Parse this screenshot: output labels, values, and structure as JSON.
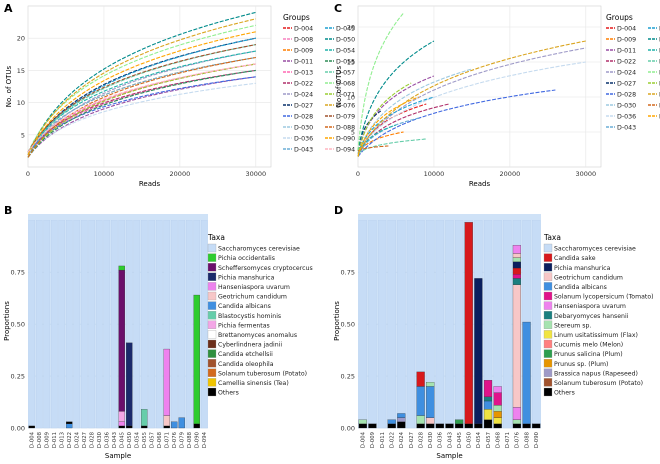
{
  "chart_data": [
    {
      "panel": "A",
      "type": "line",
      "title": "",
      "xlabel": "Reads",
      "ylabel": "No. of OTUs",
      "xlim": [
        0,
        32000
      ],
      "ylim": [
        0,
        25
      ],
      "xticks": [
        "0",
        "10000",
        "20000",
        "30000"
      ],
      "yticks": [
        "5",
        "10",
        "15",
        "20"
      ],
      "legend_title": "Groups",
      "legend": {
        "left": [
          "D-004",
          "D-008",
          "D-009",
          "D-011",
          "D-013",
          "D-022",
          "D-024",
          "D-027",
          "D-028",
          "D-030",
          "D-036",
          "D-043"
        ],
        "right": [
          "D-045",
          "D-050",
          "D-054",
          "D-055",
          "D-057",
          "D-068",
          "D-071",
          "D-076",
          "D-079",
          "D-088",
          "D-090",
          "D-094"
        ]
      },
      "series": [
        {
          "name": "D-004",
          "color": "#e41a1c",
          "x_max": 30000,
          "y_max": 16
        },
        {
          "name": "D-008",
          "color": "#f781bf",
          "x_max": 30000,
          "y_max": 15
        },
        {
          "name": "D-009",
          "color": "#ff7f00",
          "x_max": 30000,
          "y_max": 17
        },
        {
          "name": "D-011",
          "color": "#984ea3",
          "x_max": 30000,
          "y_max": 14
        },
        {
          "name": "D-013",
          "color": "#ff69b4",
          "x_max": 30000,
          "y_max": 16
        },
        {
          "name": "D-022",
          "color": "#b0306b",
          "x_max": 30000,
          "y_max": 15
        },
        {
          "name": "D-024",
          "color": "#9e9ac8",
          "x_max": 30000,
          "y_max": 18
        },
        {
          "name": "D-027",
          "color": "#08306b",
          "x_max": 30000,
          "y_max": 20
        },
        {
          "name": "D-028",
          "color": "#4169e1",
          "x_max": 30000,
          "y_max": 14
        },
        {
          "name": "D-030",
          "color": "#9ecae1",
          "x_max": 30000,
          "y_max": 15
        },
        {
          "name": "D-036",
          "color": "#c6dbef",
          "x_max": 30000,
          "y_max": 13
        },
        {
          "name": "D-043",
          "color": "#6baed6",
          "x_max": 30000,
          "y_max": 17
        },
        {
          "name": "D-045",
          "color": "#1f9fd1",
          "x_max": 30000,
          "y_max": 20
        },
        {
          "name": "D-050",
          "color": "#008b8b",
          "x_max": 30000,
          "y_max": 24
        },
        {
          "name": "D-054",
          "color": "#20b2aa",
          "x_max": 30000,
          "y_max": 18
        },
        {
          "name": "D-055",
          "color": "#2e8b57",
          "x_max": 30000,
          "y_max": 15
        },
        {
          "name": "D-057",
          "color": "#66cdaa",
          "x_max": 30000,
          "y_max": 19
        },
        {
          "name": "D-068",
          "color": "#90ee90",
          "x_max": 30000,
          "y_max": 22
        },
        {
          "name": "D-071",
          "color": "#9acd32",
          "x_max": 30000,
          "y_max": 16
        },
        {
          "name": "D-076",
          "color": "#daa520",
          "x_max": 30000,
          "y_max": 23
        },
        {
          "name": "D-079",
          "color": "#a0522d",
          "x_max": 30000,
          "y_max": 19
        },
        {
          "name": "D-088",
          "color": "#d2691e",
          "x_max": 30000,
          "y_max": 17
        },
        {
          "name": "D-090",
          "color": "#ffa500",
          "x_max": 30000,
          "y_max": 21
        },
        {
          "name": "D-094",
          "color": "#ffb6c1",
          "x_max": 30000,
          "y_max": 16
        }
      ]
    },
    {
      "panel": "C",
      "type": "line",
      "title": "",
      "xlabel": "Reads",
      "ylabel": "No. of OTUs",
      "xlim": [
        0,
        32000
      ],
      "ylim": [
        0,
        23
      ],
      "xticks": [
        "0",
        "10000",
        "20000",
        "30000"
      ],
      "yticks": [
        "5",
        "10",
        "15",
        "20"
      ],
      "legend_title": "Groups",
      "legend": {
        "left": [
          "D-004",
          "D-009",
          "D-011",
          "D-022",
          "D-024",
          "D-027",
          "D-028",
          "D-030",
          "D-036",
          "D-043"
        ],
        "right": [
          "D-045",
          "D-050",
          "D-054",
          "D-057",
          "D-068",
          "D-071",
          "D-076",
          "D-088",
          "D-090"
        ]
      },
      "series": [
        {
          "name": "D-004",
          "color": "#e41a1c",
          "x_max": 9000,
          "y_max": 9
        },
        {
          "name": "D-009",
          "color": "#ff7f00",
          "x_max": 6000,
          "y_max": 5
        },
        {
          "name": "D-011",
          "color": "#984ea3",
          "x_max": 10000,
          "y_max": 13
        },
        {
          "name": "D-022",
          "color": "#b0306b",
          "x_max": 12000,
          "y_max": 9
        },
        {
          "name": "D-024",
          "color": "#9e9ac8",
          "x_max": 30000,
          "y_max": 17
        },
        {
          "name": "D-027",
          "color": "#08306b",
          "x_max": 3000,
          "y_max": 8
        },
        {
          "name": "D-028",
          "color": "#4169e1",
          "x_max": 26000,
          "y_max": 11
        },
        {
          "name": "D-030",
          "color": "#9ecae1",
          "x_max": 15000,
          "y_max": 14
        },
        {
          "name": "D-036",
          "color": "#c6dbef",
          "x_max": 30000,
          "y_max": 15
        },
        {
          "name": "D-043",
          "color": "#6baed6",
          "x_max": 8000,
          "y_max": 7
        },
        {
          "name": "D-045",
          "color": "#1f9fd1",
          "x_max": 10000,
          "y_max": 10
        },
        {
          "name": "D-050",
          "color": "#008b8b",
          "x_max": 10000,
          "y_max": 18
        },
        {
          "name": "D-054",
          "color": "#20b2aa",
          "x_max": 5000,
          "y_max": 6
        },
        {
          "name": "D-057",
          "color": "#66cdaa",
          "x_max": 9000,
          "y_max": 4
        },
        {
          "name": "D-068",
          "color": "#90ee90",
          "x_max": 6000,
          "y_max": 22
        },
        {
          "name": "D-071",
          "color": "#9acd32",
          "x_max": 7000,
          "y_max": 12
        },
        {
          "name": "D-076",
          "color": "#daa520",
          "x_max": 30000,
          "y_max": 18
        },
        {
          "name": "D-088",
          "color": "#d2691e",
          "x_max": 4000,
          "y_max": 3
        },
        {
          "name": "D-090",
          "color": "#ffa500",
          "x_max": 8000,
          "y_max": 10
        }
      ]
    },
    {
      "panel": "B",
      "type": "bar",
      "xlabel": "Sample",
      "ylabel": "Proportions",
      "ylim": [
        0,
        1
      ],
      "yticks": [
        "0.00",
        "0.25",
        "0.50",
        "0.75"
      ],
      "legend_title": "Taxa",
      "categories": [
        "D-004",
        "D-008",
        "D-009",
        "D-011",
        "D-013",
        "D-022",
        "D-024",
        "D-027",
        "D-028",
        "D-030",
        "D-036",
        "D-043",
        "D-045",
        "D-050",
        "D-054",
        "D-055",
        "D-057",
        "D-068",
        "D-071",
        "D-076",
        "D-079",
        "D-088",
        "D-090",
        "D-094"
      ],
      "taxa": [
        {
          "name": "Saccharomyces cerevisiae",
          "color": "#c6dcf6"
        },
        {
          "name": "Pichia occidentalis",
          "color": "#2ecc2e"
        },
        {
          "name": "Scheffersomyces cryptocercus",
          "color": "#6b0f6b"
        },
        {
          "name": "Pichia manshurica",
          "color": "#1b2a6b"
        },
        {
          "name": "Hanseniaspora uvarum",
          "color": "#ee82ee"
        },
        {
          "name": "Geotrichum candidum",
          "color": "#f7c7c7"
        },
        {
          "name": "Candida albicans",
          "color": "#3f8fe0"
        },
        {
          "name": "Blastocystis hominis",
          "color": "#66cdaa"
        },
        {
          "name": "Pichia fermentas",
          "color": "#f3a6e6"
        },
        {
          "name": "Brettanomyces anomalus",
          "color": "#ffffff"
        },
        {
          "name": "Cyberlindnera jadinii",
          "color": "#6b2e1a"
        },
        {
          "name": "Candida etchellsii",
          "color": "#2f8f3f"
        },
        {
          "name": "Candida oleophila",
          "color": "#a0522d"
        },
        {
          "name": "Solanum tuberosum (Potato)",
          "color": "#d2691e"
        },
        {
          "name": "Camellia sinensis (Tea)",
          "color": "#f0c400"
        },
        {
          "name": "Others",
          "color": "#000000"
        }
      ],
      "stacks": {
        "D-004": [
          [
            "Others",
            0.01
          ]
        ],
        "D-022": [
          [
            "Candida albicans",
            0.02
          ],
          [
            "Others",
            0.01
          ]
        ],
        "D-045": [
          [
            "Others",
            0.01
          ],
          [
            "Hanseniaspora uvarum",
            0.02
          ],
          [
            "Pichia fermentas",
            0.05
          ],
          [
            "Scheffersomyces cryptocercus",
            0.68
          ],
          [
            "Pichia occidentalis",
            0.02
          ]
        ],
        "D-050": [
          [
            "Others",
            0.01
          ],
          [
            "Pichia manshurica",
            0.4
          ]
        ],
        "D-055": [
          [
            "Others",
            0.01
          ],
          [
            "Blastocystis hominis",
            0.08
          ]
        ],
        "D-071": [
          [
            "Others",
            0.01
          ],
          [
            "Geotrichum candidum",
            0.05
          ],
          [
            "Hanseniaspora uvarum",
            0.32
          ]
        ],
        "D-076": [
          [
            "Candida albicans",
            0.03
          ]
        ],
        "D-079": [
          [
            "Candida albicans",
            0.05
          ]
        ],
        "D-090": [
          [
            "Others",
            0.02
          ],
          [
            "Pichia occidentalis",
            0.62
          ]
        ]
      }
    },
    {
      "panel": "D",
      "type": "bar",
      "xlabel": "Sample",
      "ylabel": "Proportions",
      "ylim": [
        0,
        1
      ],
      "yticks": [
        "0.00",
        "0.25",
        "0.50",
        "0.75"
      ],
      "legend_title": "Taxa",
      "categories": [
        "D-004",
        "D-009",
        "D-011",
        "D-022",
        "D-024",
        "D-027",
        "D-028",
        "D-030",
        "D-036",
        "D-043",
        "D-045",
        "D-050",
        "D-054",
        "D-057",
        "D-068",
        "D-071",
        "D-076",
        "D-088",
        "D-090"
      ],
      "taxa": [
        {
          "name": "Saccharomyces cerevisiae",
          "color": "#c6dcf6"
        },
        {
          "name": "Candida sake",
          "color": "#d7191c"
        },
        {
          "name": "Pichia manshurica",
          "color": "#0b1f5e"
        },
        {
          "name": "Geotrichum candidum",
          "color": "#f7c7c7"
        },
        {
          "name": "Candida albicans",
          "color": "#3f8fe0"
        },
        {
          "name": "Solanum lycopersicum (Tomato)",
          "color": "#e0138a"
        },
        {
          "name": "Hanseniaspora uvarum",
          "color": "#ee82ee"
        },
        {
          "name": "Debaryomyces hansenii",
          "color": "#1a7f7f"
        },
        {
          "name": "Stereum sp.",
          "color": "#a6e3b0"
        },
        {
          "name": "Linum usitatissimum (Flax)",
          "color": "#f0e442"
        },
        {
          "name": "Cucumis melo (Melon)",
          "color": "#ff7f7f"
        },
        {
          "name": "Prunus salicina (Plum)",
          "color": "#2e9e4f"
        },
        {
          "name": "Prunus sp. (Plum)",
          "color": "#e69500"
        },
        {
          "name": "Brassica napus (Rapeseed)",
          "color": "#9e9ac8"
        },
        {
          "name": "Solanum tuberosum (Potato)",
          "color": "#a0522d"
        },
        {
          "name": "Others",
          "color": "#000000"
        }
      ],
      "stacks": {
        "D-004": [
          [
            "Others",
            0.02
          ],
          [
            "Stereum sp.",
            0.02
          ]
        ],
        "D-009": [
          [
            "Others",
            0.02
          ]
        ],
        "D-022": [
          [
            "Others",
            0.02
          ],
          [
            "Candida albicans",
            0.02
          ]
        ],
        "D-024": [
          [
            "Others",
            0.03
          ],
          [
            "Brassica napus (Rapeseed)",
            0.02
          ],
          [
            "Candida albicans",
            0.02
          ]
        ],
        "D-028": [
          [
            "Others",
            0.02
          ],
          [
            "Stereum sp.",
            0.04
          ],
          [
            "Candida albicans",
            0.14
          ],
          [
            "Candida sake",
            0.07
          ]
        ],
        "D-030": [
          [
            "Others",
            0.02
          ],
          [
            "Geotrichum candidum",
            0.03
          ],
          [
            "Candida albicans",
            0.15
          ],
          [
            "Stereum sp.",
            0.02
          ]
        ],
        "D-036": [
          [
            "Others",
            0.02
          ]
        ],
        "D-043": [
          [
            "Others",
            0.02
          ]
        ],
        "D-045": [
          [
            "Others",
            0.02
          ],
          [
            "Prunus salicina (Plum)",
            0.02
          ]
        ],
        "D-050": [
          [
            "Others",
            0.02
          ],
          [
            "Candida sake",
            0.97
          ]
        ],
        "D-054": [
          [
            "Others",
            0.02
          ],
          [
            "Pichia manshurica",
            0.7
          ]
        ],
        "D-057": [
          [
            "Others",
            0.04
          ],
          [
            "Linum usitatissimum (Flax)",
            0.05
          ],
          [
            "Candida albicans",
            0.04
          ],
          [
            "Debaryomyces hansenii",
            0.02
          ],
          [
            "Solanum lycopersicum (Tomato)",
            0.08
          ]
        ],
        "D-068": [
          [
            "Others",
            0.02
          ],
          [
            "Linum usitatissimum (Flax)",
            0.03
          ],
          [
            "Prunus sp. (Plum)",
            0.03
          ],
          [
            "Stereum sp.",
            0.03
          ],
          [
            "Solanum lycopersicum (Tomato)",
            0.06
          ],
          [
            "Hanseniaspora uvarum",
            0.03
          ]
        ],
        "D-076": [
          [
            "Others",
            0.02
          ],
          [
            "Stereum sp.",
            0.02
          ],
          [
            "Hanseniaspora uvarum",
            0.06
          ],
          [
            "Geotrichum candidum",
            0.59
          ],
          [
            "Debaryomyces hansenii",
            0.03
          ],
          [
            "Solanum lycopersicum (Tomato)",
            0.02
          ],
          [
            "Candida sake",
            0.03
          ],
          [
            "Pichia manshurica",
            0.03
          ],
          [
            "Stereum sp.",
            0.02
          ],
          [
            "Geotrichum candidum",
            0.02
          ],
          [
            "Hanseniaspora uvarum",
            0.04
          ]
        ],
        "D-088": [
          [
            "Others",
            0.02
          ],
          [
            "Candida albicans",
            0.49
          ]
        ],
        "D-090": [
          [
            "Others",
            0.02
          ]
        ]
      }
    }
  ]
}
